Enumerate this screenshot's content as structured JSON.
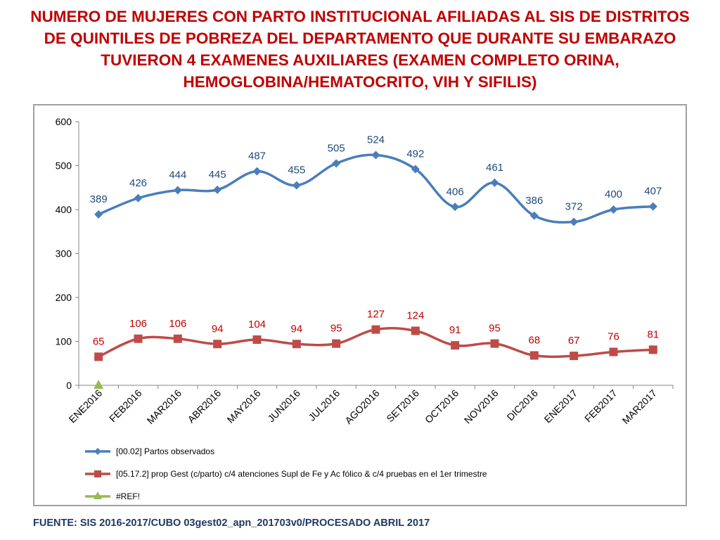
{
  "title": "NUMERO DE MUJERES CON PARTO INSTITUCIONAL AFILIADAS AL SIS DE DISTRITOS DE QUINTILES DE POBREZA DEL DEPARTAMENTO QUE DURANTE SU EMBARAZO TUVIERON  4 EXAMENES AUXILIARES (EXAMEN COMPLETO ORINA, HEMOGLOBINA/HEMATOCRITO, VIH Y SIFILIS)",
  "source": "FUENTE: SIS 2016-2017/CUBO 03gest02_apn_201703v0/PROCESADO ABRIL 2017",
  "colors": {
    "title": "#c00000",
    "source": "#1f3864",
    "series_blue": "#4a7ebb",
    "series_red": "#be4b48",
    "series_green": "#98b954",
    "label_blue": "#1f497d",
    "label_red": "#c00000"
  },
  "chart_data": {
    "type": "line",
    "categories": [
      "ENE2016",
      "FEB2016",
      "MAR2016",
      "ABR2016",
      "MAY2016",
      "JUN2016",
      "JUL2016",
      "AGO2016",
      "SET2016",
      "OCT2016",
      "NOV2016",
      "DIC2016",
      "ENE2017",
      "FEB2017",
      "MAR2017"
    ],
    "ylim": [
      0,
      600
    ],
    "yticks": [
      0,
      100,
      200,
      300,
      400,
      500,
      600
    ],
    "grid": false,
    "smooth": true,
    "legend_position": "bottom",
    "series": [
      {
        "name": "[00.02] Partos observados",
        "marker": "diamond",
        "values": [
          389,
          426,
          444,
          445,
          487,
          455,
          505,
          524,
          492,
          406,
          461,
          386,
          372,
          400,
          407
        ],
        "labels": [
          "389",
          "426",
          "444",
          "445",
          "487",
          "455",
          "505",
          "524",
          "492",
          "406",
          "461",
          "386",
          "372",
          "400",
          "407"
        ]
      },
      {
        "name": "[05.17.2] prop Gest (c/parto) c/4 atenciones Supl de Fe y Ac fólico & c/4 pruebas en el 1er trimestre",
        "marker": "square",
        "values": [
          65,
          106,
          106,
          94,
          104,
          94,
          95,
          127,
          124,
          91,
          95,
          68,
          67,
          76,
          81
        ],
        "labels": [
          "65",
          "106",
          "106",
          "94",
          "104",
          "94",
          "95",
          "127",
          "124",
          "91",
          "95",
          "68",
          "67",
          "76",
          "81"
        ]
      },
      {
        "name": "#REF!",
        "marker": "triangle",
        "values": [
          0,
          null,
          null,
          null,
          null,
          null,
          null,
          null,
          null,
          null,
          null,
          null,
          null,
          null,
          null
        ],
        "labels": []
      }
    ]
  }
}
